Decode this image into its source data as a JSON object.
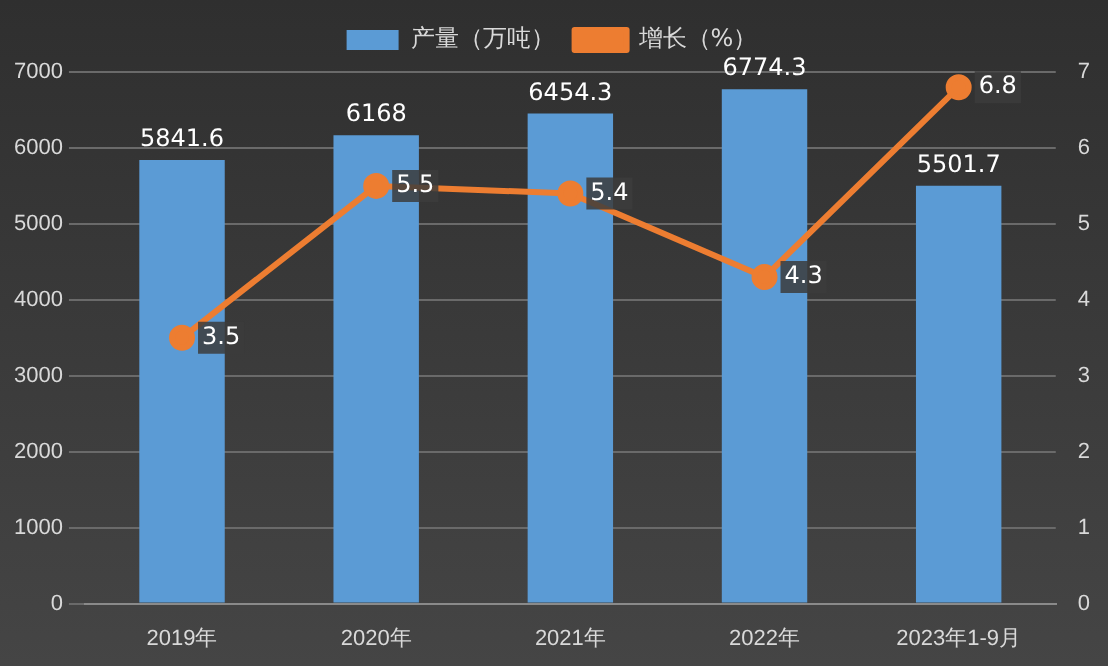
{
  "chart_data": {
    "type": "bar",
    "categories": [
      "2019年",
      "2020年",
      "2021年",
      "2022年",
      "2023年1-9月"
    ],
    "series": [
      {
        "name": "产量（万吨）",
        "color": "#5b9bd5",
        "values": [
          5841.6,
          6168,
          6454.3,
          6774.3,
          5501.7
        ]
      },
      {
        "name": "增长（%）",
        "type": "line",
        "axis": "y2",
        "color": "#ed7d31",
        "values": [
          3.5,
          5.5,
          5.4,
          4.3,
          6.8
        ]
      }
    ],
    "ylim": [
      0,
      7000
    ],
    "yticks": [
      0,
      1000,
      2000,
      3000,
      4000,
      5000,
      6000,
      7000
    ],
    "y2lim": [
      0,
      7
    ],
    "y2ticks": [
      0,
      1,
      2,
      3,
      4,
      5,
      6,
      7
    ],
    "grid": "y",
    "legend": "top",
    "marker": "circle",
    "data_labels": true
  }
}
